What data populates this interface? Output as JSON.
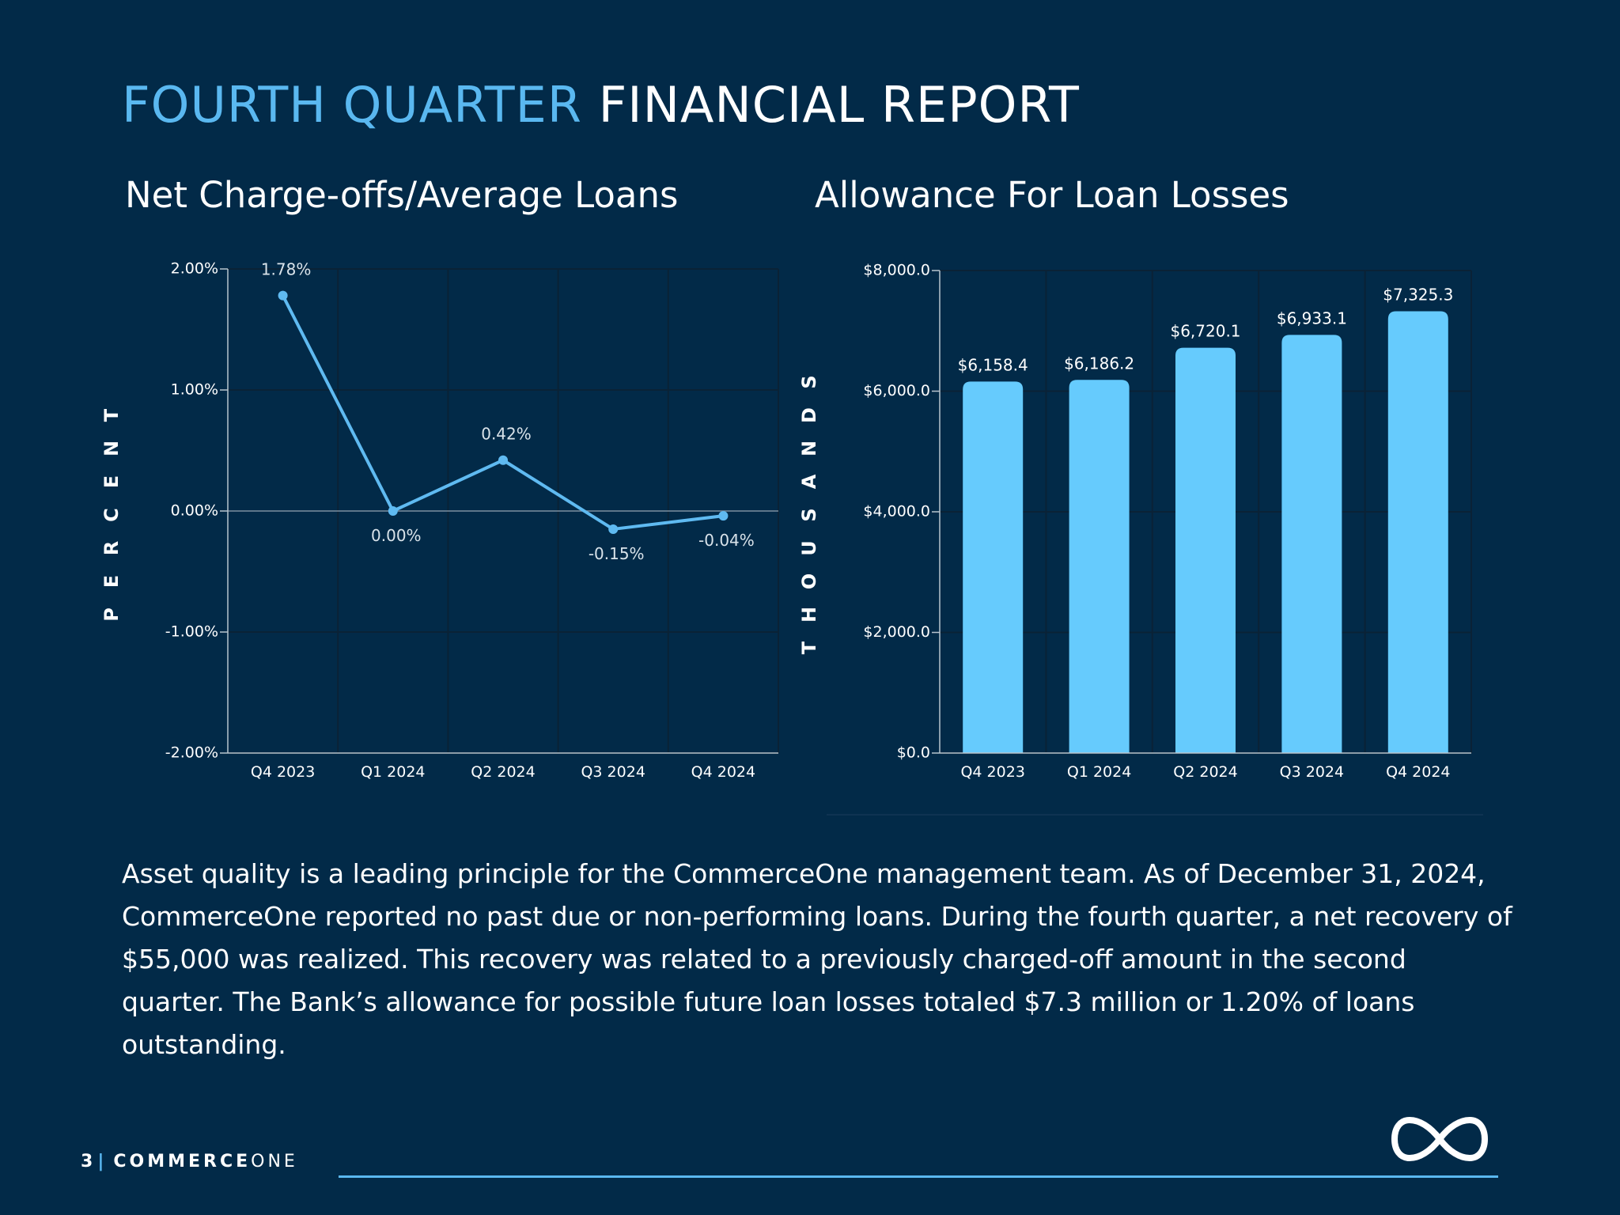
{
  "header": {
    "title_accent": "FOURTH QUARTER",
    "title_main": "FINANCIAL REPORT"
  },
  "colors": {
    "background": "#022a48",
    "accent": "#5ab8f0",
    "bar": "#66cbfd",
    "line": "#5fbaf1"
  },
  "chart_data": [
    {
      "type": "line",
      "title": "Net Charge-offs/Average Loans",
      "ylabel": "PERCENT",
      "xlabel": "",
      "categories": [
        "Q4 2023",
        "Q1 2024",
        "Q2 2024",
        "Q3 2024",
        "Q4 2024"
      ],
      "values": [
        1.78,
        0.0,
        0.42,
        -0.15,
        -0.04
      ],
      "data_labels": [
        "1.78%",
        "0.00%",
        "0.42%",
        "-0.15%",
        "-0.04%"
      ],
      "ylim": [
        -2.0,
        2.0
      ],
      "yticks": [
        2.0,
        1.0,
        0.0,
        -1.0,
        -2.0
      ],
      "ytick_labels": [
        "2.00%",
        "1.00%",
        "0.00%",
        "-1.00%",
        "-2.00%"
      ],
      "grid": true,
      "legend": "none"
    },
    {
      "type": "bar",
      "title": "Allowance For Loan Losses",
      "ylabel": "THOUSANDS",
      "xlabel": "",
      "categories": [
        "Q4 2023",
        "Q1 2024",
        "Q2 2024",
        "Q3 2024",
        "Q4 2024"
      ],
      "values": [
        6158.4,
        6186.2,
        6720.1,
        6933.1,
        7325.3
      ],
      "data_labels": [
        "$6,158.4",
        "$6,186.2",
        "$6,720.1",
        "$6,933.1",
        "$7,325.3"
      ],
      "ylim": [
        0,
        8000
      ],
      "yticks": [
        8000,
        6000,
        4000,
        2000,
        0
      ],
      "ytick_labels": [
        "$8,000.0",
        "$6,000.0",
        "$4,000.0",
        "$2,000.0",
        "$0.0"
      ],
      "grid": true,
      "legend": "none"
    }
  ],
  "body": {
    "paragraph": "Asset quality is a leading principle for the CommerceOne management team. As of December 31, 2024, CommerceOne reported no past due or non-performing loans. During the fourth quarter, a net recovery of $55,000 was realized. This recovery was related to a previously charged-off amount in the second quarter. The Bank’s allowance for possible future loan losses totaled $7.3 million or 1.20% of loans outstanding."
  },
  "footer": {
    "page_number": "3",
    "separator": "|",
    "brand_bold": "COMMERCE",
    "brand_light": "ONE",
    "logo_icon": "infinity-logo-icon"
  }
}
